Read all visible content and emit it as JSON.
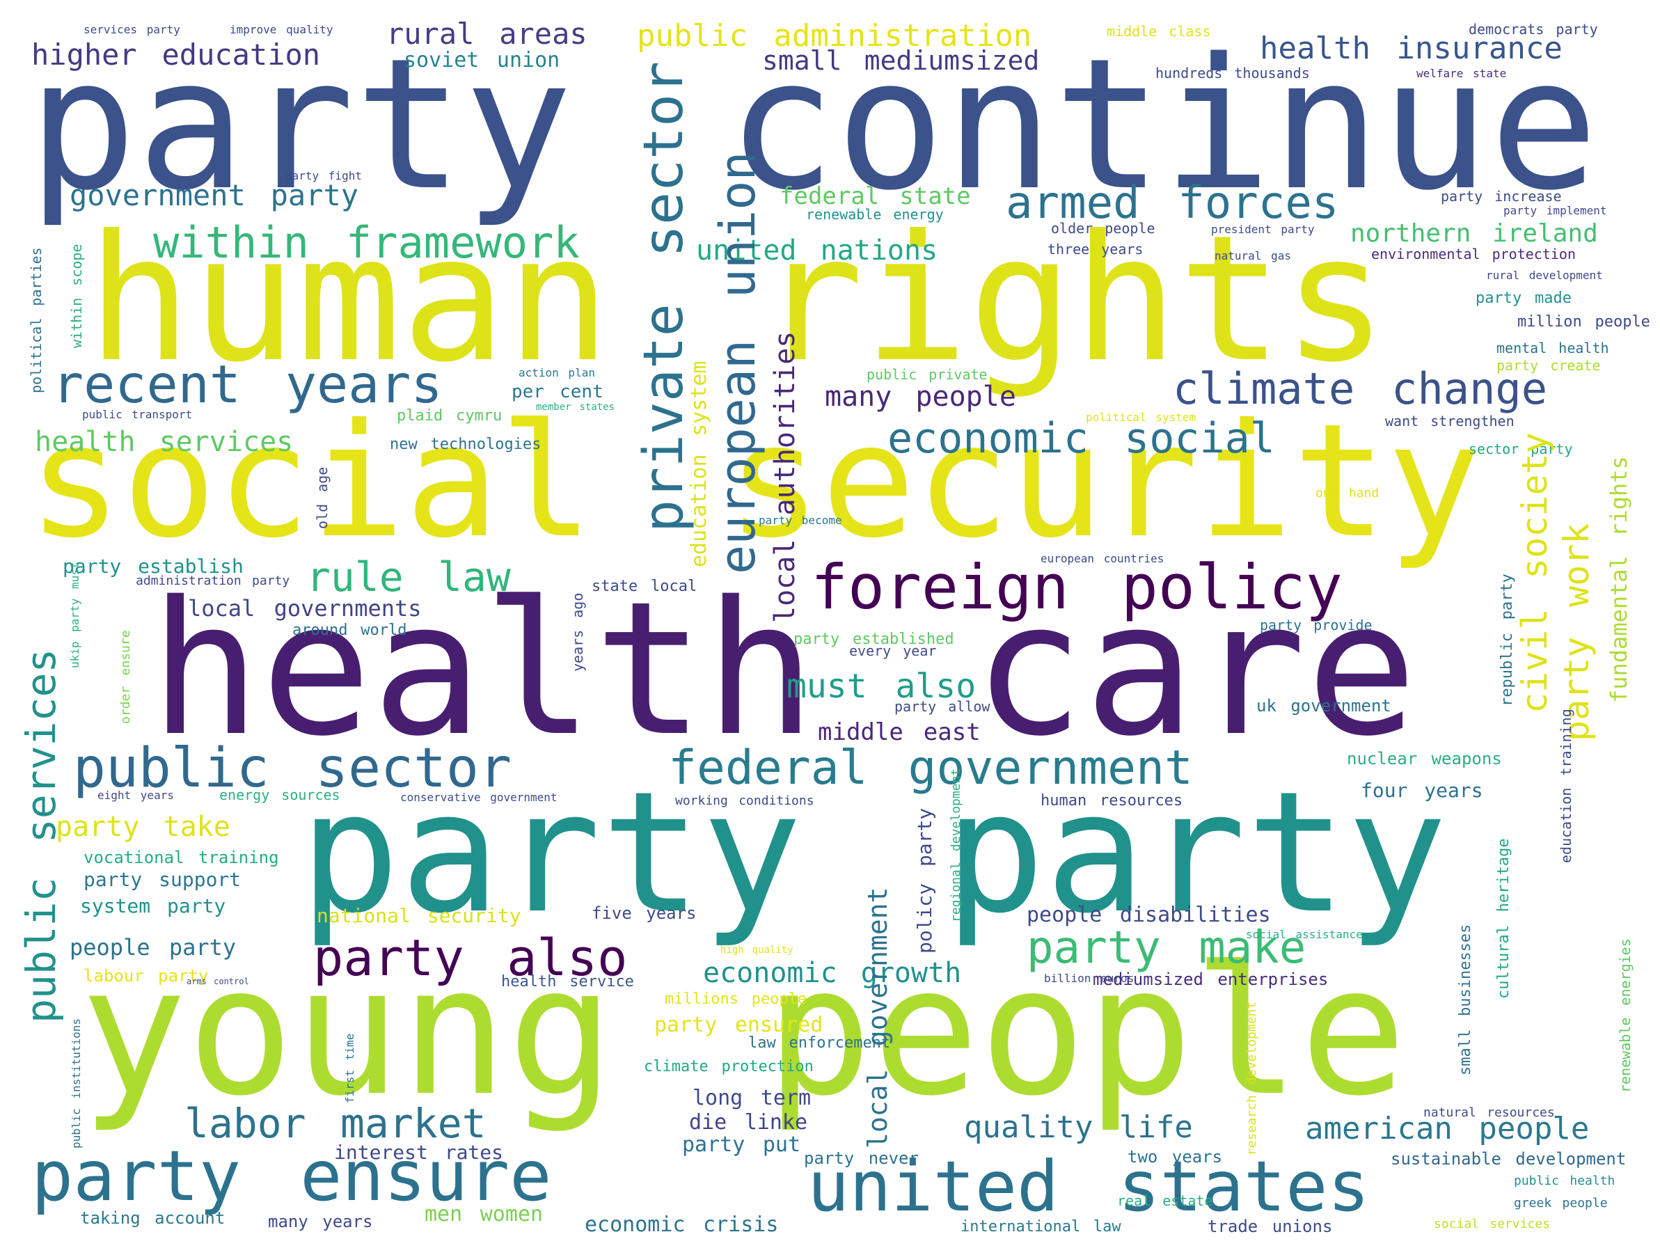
{
  "words": [
    {
      "text": "party continue",
      "color": "#3b528b"
    },
    {
      "text": "human rights",
      "color": "#dde318"
    },
    {
      "text": "social security",
      "color": "#e5e419"
    },
    {
      "text": "health care",
      "color": "#481f70"
    },
    {
      "text": "young people",
      "color": "#addc30"
    },
    {
      "text": "party party",
      "color": "#21918c"
    },
    {
      "text": "foreign policy",
      "color": "#440154"
    },
    {
      "text": "public sector",
      "color": "#31688e"
    },
    {
      "text": "party ensure",
      "color": "#2c728e"
    },
    {
      "text": "united states",
      "color": "#2c728e"
    },
    {
      "text": "recent years",
      "color": "#31688e"
    },
    {
      "text": "federal government",
      "color": "#287c8e"
    },
    {
      "text": "armed forces",
      "color": "#2c728e"
    },
    {
      "text": "within framework",
      "color": "#35b779"
    },
    {
      "text": "climate change",
      "color": "#3b528b"
    },
    {
      "text": "economic social",
      "color": "#2c728e"
    },
    {
      "text": "party also",
      "color": "#440154"
    },
    {
      "text": "party make",
      "color": "#3bbb75"
    },
    {
      "text": "labor market",
      "color": "#2c728e"
    },
    {
      "text": "rule law",
      "color": "#31b57b"
    },
    {
      "text": "government party",
      "color": "#2c728e"
    },
    {
      "text": "higher education",
      "color": "#443983"
    },
    {
      "text": "public administration",
      "color": "#e5e419"
    },
    {
      "text": "health insurance",
      "color": "#39568c"
    },
    {
      "text": "small mediumsized",
      "color": "#443983"
    },
    {
      "text": "rural areas",
      "color": "#433e85"
    },
    {
      "text": "united nations",
      "color": "#22a884"
    },
    {
      "text": "many people",
      "color": "#482878"
    },
    {
      "text": "health services",
      "color": "#5ec962"
    },
    {
      "text": "quality life",
      "color": "#2c728e"
    },
    {
      "text": "american people",
      "color": "#2a788e"
    },
    {
      "text": "economic growth",
      "color": "#21918c"
    },
    {
      "text": "must also",
      "color": "#1f9e89"
    },
    {
      "text": "local governments",
      "color": "#414487"
    },
    {
      "text": "northern ireland",
      "color": "#44bf70"
    },
    {
      "text": "federal state",
      "color": "#5ec962"
    },
    {
      "text": "middle east",
      "color": "#482878"
    },
    {
      "text": "party take",
      "color": "#dde318"
    },
    {
      "text": "people disabilities",
      "color": "#3e4a89"
    },
    {
      "text": "people party",
      "color": "#2c728e"
    },
    {
      "text": "party support",
      "color": "#2a788e"
    },
    {
      "text": "system party",
      "color": "#21918c"
    },
    {
      "text": "national security",
      "color": "#d8e219"
    },
    {
      "text": "vocational training",
      "color": "#25ac82"
    },
    {
      "text": "soviet union",
      "color": "#25858e"
    },
    {
      "text": "five years",
      "color": "#3e4a89"
    },
    {
      "text": "four years",
      "color": "#2c728e"
    },
    {
      "text": "nuclear weapons",
      "color": "#2ab07f"
    },
    {
      "text": "uk government",
      "color": "#2c728e"
    },
    {
      "text": "interest rates",
      "color": "#3e4a89"
    },
    {
      "text": "die linke",
      "color": "#414487"
    },
    {
      "text": "long term",
      "color": "#3e4a89"
    },
    {
      "text": "party put",
      "color": "#2c728e"
    },
    {
      "text": "economic crisis",
      "color": "#2c728e"
    },
    {
      "text": "men women",
      "color": "#7ad151"
    },
    {
      "text": "many years",
      "color": "#3e4a89"
    },
    {
      "text": "taking account",
      "color": "#2a788e"
    },
    {
      "text": "party ensured",
      "color": "#e5e419"
    },
    {
      "text": "millions people",
      "color": "#e5e419"
    },
    {
      "text": "climate protection",
      "color": "#22a884"
    },
    {
      "text": "law enforcement",
      "color": "#2c728e"
    },
    {
      "text": "labour party",
      "color": "#e5e419"
    },
    {
      "text": "health service",
      "color": "#39568c"
    },
    {
      "text": "mediumsized enterprises",
      "color": "#472d7b"
    },
    {
      "text": "sustainable development",
      "color": "#31688e"
    },
    {
      "text": "trade unions",
      "color": "#3e4a89"
    },
    {
      "text": "international law",
      "color": "#2a788e"
    },
    {
      "text": "two years",
      "color": "#2c728e"
    },
    {
      "text": "party never",
      "color": "#2c728e"
    },
    {
      "text": "real estate",
      "color": "#2ab07f"
    },
    {
      "text": "greek people",
      "color": "#2c728e"
    },
    {
      "text": "public health",
      "color": "#21918c"
    },
    {
      "text": "social services",
      "color": "#bddf26"
    },
    {
      "text": "natural resources",
      "color": "#3e4a89"
    },
    {
      "text": "party establish",
      "color": "#21918c"
    },
    {
      "text": "around world",
      "color": "#2c728e"
    },
    {
      "text": "state local",
      "color": "#3e4a89"
    },
    {
      "text": "plaid cymru",
      "color": "#5ec962"
    },
    {
      "text": "new technologies",
      "color": "#2c728e"
    },
    {
      "text": "per cent",
      "color": "#2a788e"
    },
    {
      "text": "public private",
      "color": "#5ec962"
    },
    {
      "text": "action plan",
      "color": "#2a788e"
    },
    {
      "text": "member states",
      "color": "#2ab07f"
    },
    {
      "text": "hundreds thousands",
      "color": "#3e4a89"
    },
    {
      "text": "democrats party",
      "color": "#3e4a89"
    },
    {
      "text": "middle class",
      "color": "#dde318"
    },
    {
      "text": "services party",
      "color": "#3e4a89"
    },
    {
      "text": "improve quality",
      "color": "#3e4a89"
    },
    {
      "text": "welfare state",
      "color": "#472d7b"
    },
    {
      "text": "party increase",
      "color": "#3e4a89"
    },
    {
      "text": "party implement",
      "color": "#3e4a89"
    },
    {
      "text": "environmental protection",
      "color": "#472d7b"
    },
    {
      "text": "rural development",
      "color": "#3e4a89"
    },
    {
      "text": "party made",
      "color": "#21918c"
    },
    {
      "text": "million people",
      "color": "#3e4a89"
    },
    {
      "text": "mental health",
      "color": "#2c728e"
    },
    {
      "text": "party create",
      "color": "#addc30"
    },
    {
      "text": "want strengthen",
      "color": "#3e4a89"
    },
    {
      "text": "sector party",
      "color": "#22a884"
    },
    {
      "text": "older people",
      "color": "#3e4a89"
    },
    {
      "text": "three years",
      "color": "#3e4a89"
    },
    {
      "text": "president party",
      "color": "#3e4a89"
    },
    {
      "text": "natural gas",
      "color": "#3e4a89"
    },
    {
      "text": "renewable energy",
      "color": "#21918c"
    },
    {
      "text": "party fight",
      "color": "#3e4a89"
    },
    {
      "text": "party provide",
      "color": "#2c728e"
    },
    {
      "text": "every year",
      "color": "#3e4a89"
    },
    {
      "text": "party established",
      "color": "#5ec962"
    },
    {
      "text": "party allow",
      "color": "#3e4a89"
    },
    {
      "text": "one hand",
      "color": "#dde318"
    },
    {
      "text": "european countries",
      "color": "#3e4a89"
    },
    {
      "text": "party become",
      "color": "#2a788e"
    },
    {
      "text": "human resources",
      "color": "#3e4a89"
    },
    {
      "text": "working conditions",
      "color": "#3e4a89"
    },
    {
      "text": "conservative government",
      "color": "#3e4a89"
    },
    {
      "text": "energy sources",
      "color": "#2ab07f"
    },
    {
      "text": "eight years",
      "color": "#3e4a89"
    },
    {
      "text": "public transport",
      "color": "#3e4a89"
    },
    {
      "text": "administration party",
      "color": "#3e4a89"
    },
    {
      "text": "social assistance",
      "color": "#2ab07f"
    },
    {
      "text": "billion euros",
      "color": "#3e4a89"
    },
    {
      "text": "arms control",
      "color": "#3e4a89"
    },
    {
      "text": "high quality",
      "color": "#dde318"
    },
    {
      "text": "political system",
      "color": "#dde318"
    }
  ],
  "vertical_words": [
    {
      "text": "private sector",
      "color": "#2c728e"
    },
    {
      "text": "european union",
      "color": "#31688e"
    },
    {
      "text": "local authorities",
      "color": "#482878"
    },
    {
      "text": "civil society",
      "color": "#dde318"
    },
    {
      "text": "party work",
      "color": "#dde318"
    },
    {
      "text": "public services",
      "color": "#21918c"
    },
    {
      "text": "education system",
      "color": "#dde318"
    },
    {
      "text": "local government",
      "color": "#2c728e"
    },
    {
      "text": "fundamental rights",
      "color": "#addc30"
    },
    {
      "text": "policy party",
      "color": "#3e4a89"
    },
    {
      "text": "small businesses",
      "color": "#2c728e"
    },
    {
      "text": "cultural heritage",
      "color": "#22a884"
    },
    {
      "text": "republic party",
      "color": "#2c728e"
    },
    {
      "text": "education training",
      "color": "#3e4a89"
    },
    {
      "text": "renewable energies",
      "color": "#5ec962"
    },
    {
      "text": "political parties",
      "color": "#2c728e"
    },
    {
      "text": "within scope",
      "color": "#2ab07f"
    },
    {
      "text": "old age",
      "color": "#3e4a89"
    },
    {
      "text": "years ago",
      "color": "#3e4a89"
    },
    {
      "text": "order ensure",
      "color": "#7ad151"
    },
    {
      "text": "ukip party must",
      "color": "#2ab07f"
    },
    {
      "text": "public institutions",
      "color": "#2c728e"
    },
    {
      "text": "first time",
      "color": "#2c728e"
    },
    {
      "text": "regional development",
      "color": "#2ab07f"
    },
    {
      "text": "research development",
      "color": "#dde318"
    }
  ]
}
